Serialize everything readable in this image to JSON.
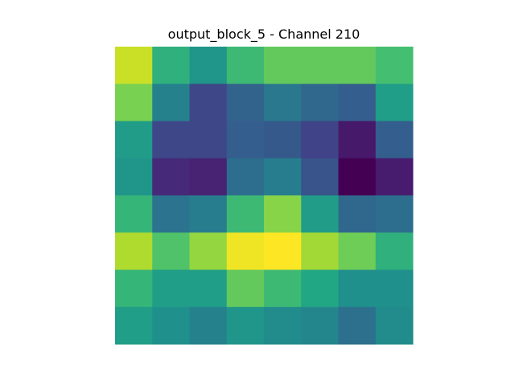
{
  "chart_data": {
    "type": "heatmap",
    "title": "output_block_5 - Channel 210",
    "xlabel": "",
    "ylabel": "",
    "colormap": "viridis",
    "axes_visible": false,
    "grid": false,
    "rows": 8,
    "cols": 8,
    "values": [
      [
        0.92,
        0.64,
        0.52,
        0.68,
        0.76,
        0.76,
        0.76,
        0.7
      ],
      [
        0.8,
        0.44,
        0.22,
        0.32,
        0.4,
        0.34,
        0.3,
        0.56
      ],
      [
        0.55,
        0.22,
        0.22,
        0.3,
        0.28,
        0.2,
        0.07,
        0.3
      ],
      [
        0.52,
        0.12,
        0.1,
        0.36,
        0.42,
        0.26,
        0.0,
        0.08
      ],
      [
        0.66,
        0.38,
        0.42,
        0.68,
        0.82,
        0.55,
        0.34,
        0.36
      ],
      [
        0.88,
        0.72,
        0.84,
        0.98,
        1.0,
        0.86,
        0.78,
        0.64
      ],
      [
        0.66,
        0.56,
        0.56,
        0.76,
        0.68,
        0.6,
        0.5,
        0.5
      ],
      [
        0.56,
        0.5,
        0.44,
        0.52,
        0.48,
        0.46,
        0.37,
        0.48
      ]
    ]
  }
}
